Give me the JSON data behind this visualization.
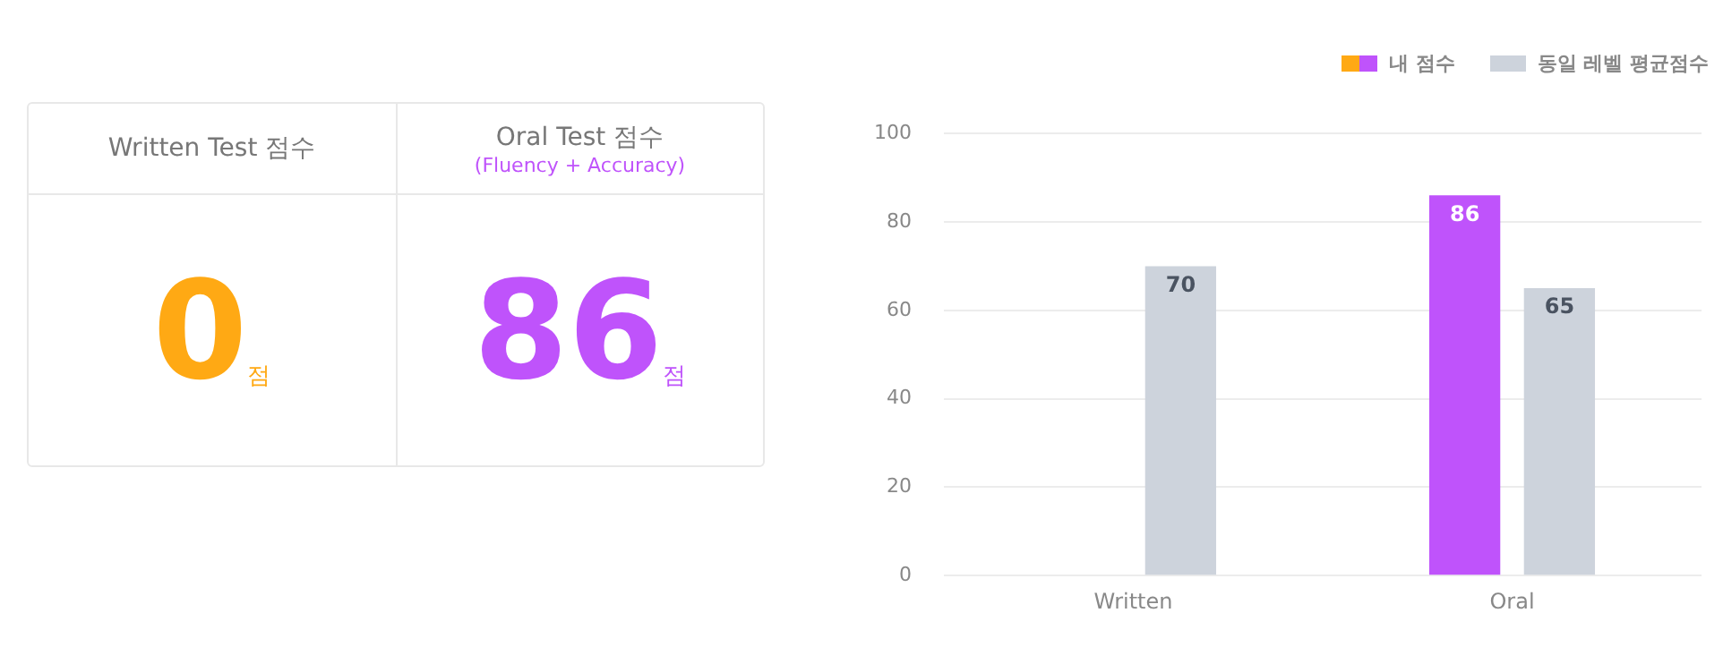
{
  "chart_data": [
    {
      "type": "other",
      "categories": [
        "Written Test 점수",
        "Oral Test 점수"
      ],
      "value_labels": [
        "0",
        "86"
      ],
      "colors": [
        "#ffa914",
        "#bf53fb"
      ],
      "annotations": [
        "점",
        "점",
        "(Fluency + Accuracy)"
      ]
    },
    {
      "type": "bar",
      "categories": [
        "Written",
        "Oral"
      ],
      "series": [
        {
          "name": "내 점수",
          "colors": [
            "#ffa914",
            "#bf53fb"
          ],
          "values": [
            0,
            86
          ],
          "value_labels": [
            null,
            "86"
          ]
        },
        {
          "name": "동일 레벨 평균점수",
          "color": "#cdd3dc",
          "values": [
            70,
            65
          ],
          "value_labels": [
            "70",
            "65"
          ]
        }
      ],
      "ylim": [
        0,
        100
      ],
      "yticks": [
        0,
        20,
        40,
        60,
        80,
        100
      ],
      "grid": "y",
      "legend": "top right"
    }
  ]
}
